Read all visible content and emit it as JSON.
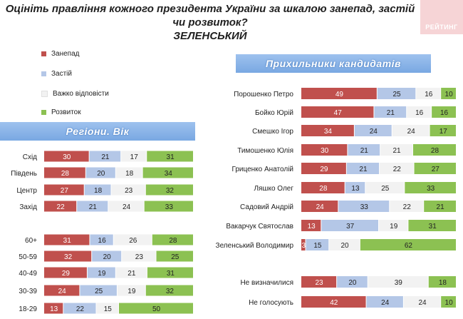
{
  "header": {
    "title_line1": "Оцініть правління кожного президента України за шкалою занепад, застій чи розвиток?",
    "title_line2": "ЗЕЛЕНСЬКИЙ",
    "logo_text": "РЕЙТИНГ"
  },
  "legend": [
    {
      "label": "Занепад",
      "color": "#c0504d"
    },
    {
      "label": "Застій",
      "color": "#b4c7e7"
    },
    {
      "label": "Важко відповісти",
      "color": "#f2f2f2"
    },
    {
      "label": "Розвиток",
      "color": "#8cc152"
    }
  ],
  "section_regions_title": "Регіони. Вік",
  "section_candidates_title": "Прихильники кандидатів",
  "chart_data": [
    {
      "type": "bar",
      "orientation": "horizontal-stacked-100",
      "title": "Регіони. Вік",
      "series_names": [
        "Занепад",
        "Застій",
        "Важко відповісти",
        "Розвиток"
      ],
      "groups": [
        {
          "name": "regions",
          "categories": [
            "Схід",
            "Південь",
            "Центр",
            "Захід"
          ],
          "values": [
            [
              30,
              21,
              17,
              31
            ],
            [
              28,
              20,
              18,
              34
            ],
            [
              27,
              18,
              23,
              32
            ],
            [
              22,
              21,
              24,
              33
            ]
          ]
        },
        {
          "name": "age",
          "categories": [
            "60+",
            "50-59",
            "40-49",
            "30-39",
            "18-29"
          ],
          "values": [
            [
              31,
              16,
              26,
              28
            ],
            [
              32,
              20,
              23,
              25
            ],
            [
              29,
              19,
              21,
              31
            ],
            [
              24,
              25,
              19,
              32
            ],
            [
              13,
              22,
              15,
              50
            ]
          ]
        }
      ]
    },
    {
      "type": "bar",
      "orientation": "horizontal-stacked-100",
      "title": "Прихильники кандидатів",
      "series_names": [
        "Занепад",
        "Застій",
        "Важко відповісти",
        "Розвиток"
      ],
      "groups": [
        {
          "name": "candidates",
          "categories": [
            "Порошенко Петро",
            "Бойко Юрій",
            "Смешко Ігор",
            "Тимошенко Юлія",
            "Гриценко Анатолій",
            "Ляшко Олег",
            "Садовий Андрій",
            "Вакарчук Святослав",
            "Зеленський Володимир"
          ],
          "values": [
            [
              49,
              25,
              16,
              10
            ],
            [
              47,
              21,
              16,
              16
            ],
            [
              34,
              24,
              24,
              17
            ],
            [
              30,
              21,
              21,
              28
            ],
            [
              29,
              21,
              22,
              27
            ],
            [
              28,
              13,
              25,
              33
            ],
            [
              24,
              33,
              22,
              21
            ],
            [
              13,
              37,
              19,
              31
            ],
            [
              3,
              15,
              20,
              62
            ]
          ]
        },
        {
          "name": "others",
          "categories": [
            "Не визначилися",
            "Не голосують"
          ],
          "values": [
            [
              23,
              20,
              39,
              18
            ],
            [
              42,
              24,
              24,
              10
            ]
          ]
        }
      ]
    }
  ]
}
